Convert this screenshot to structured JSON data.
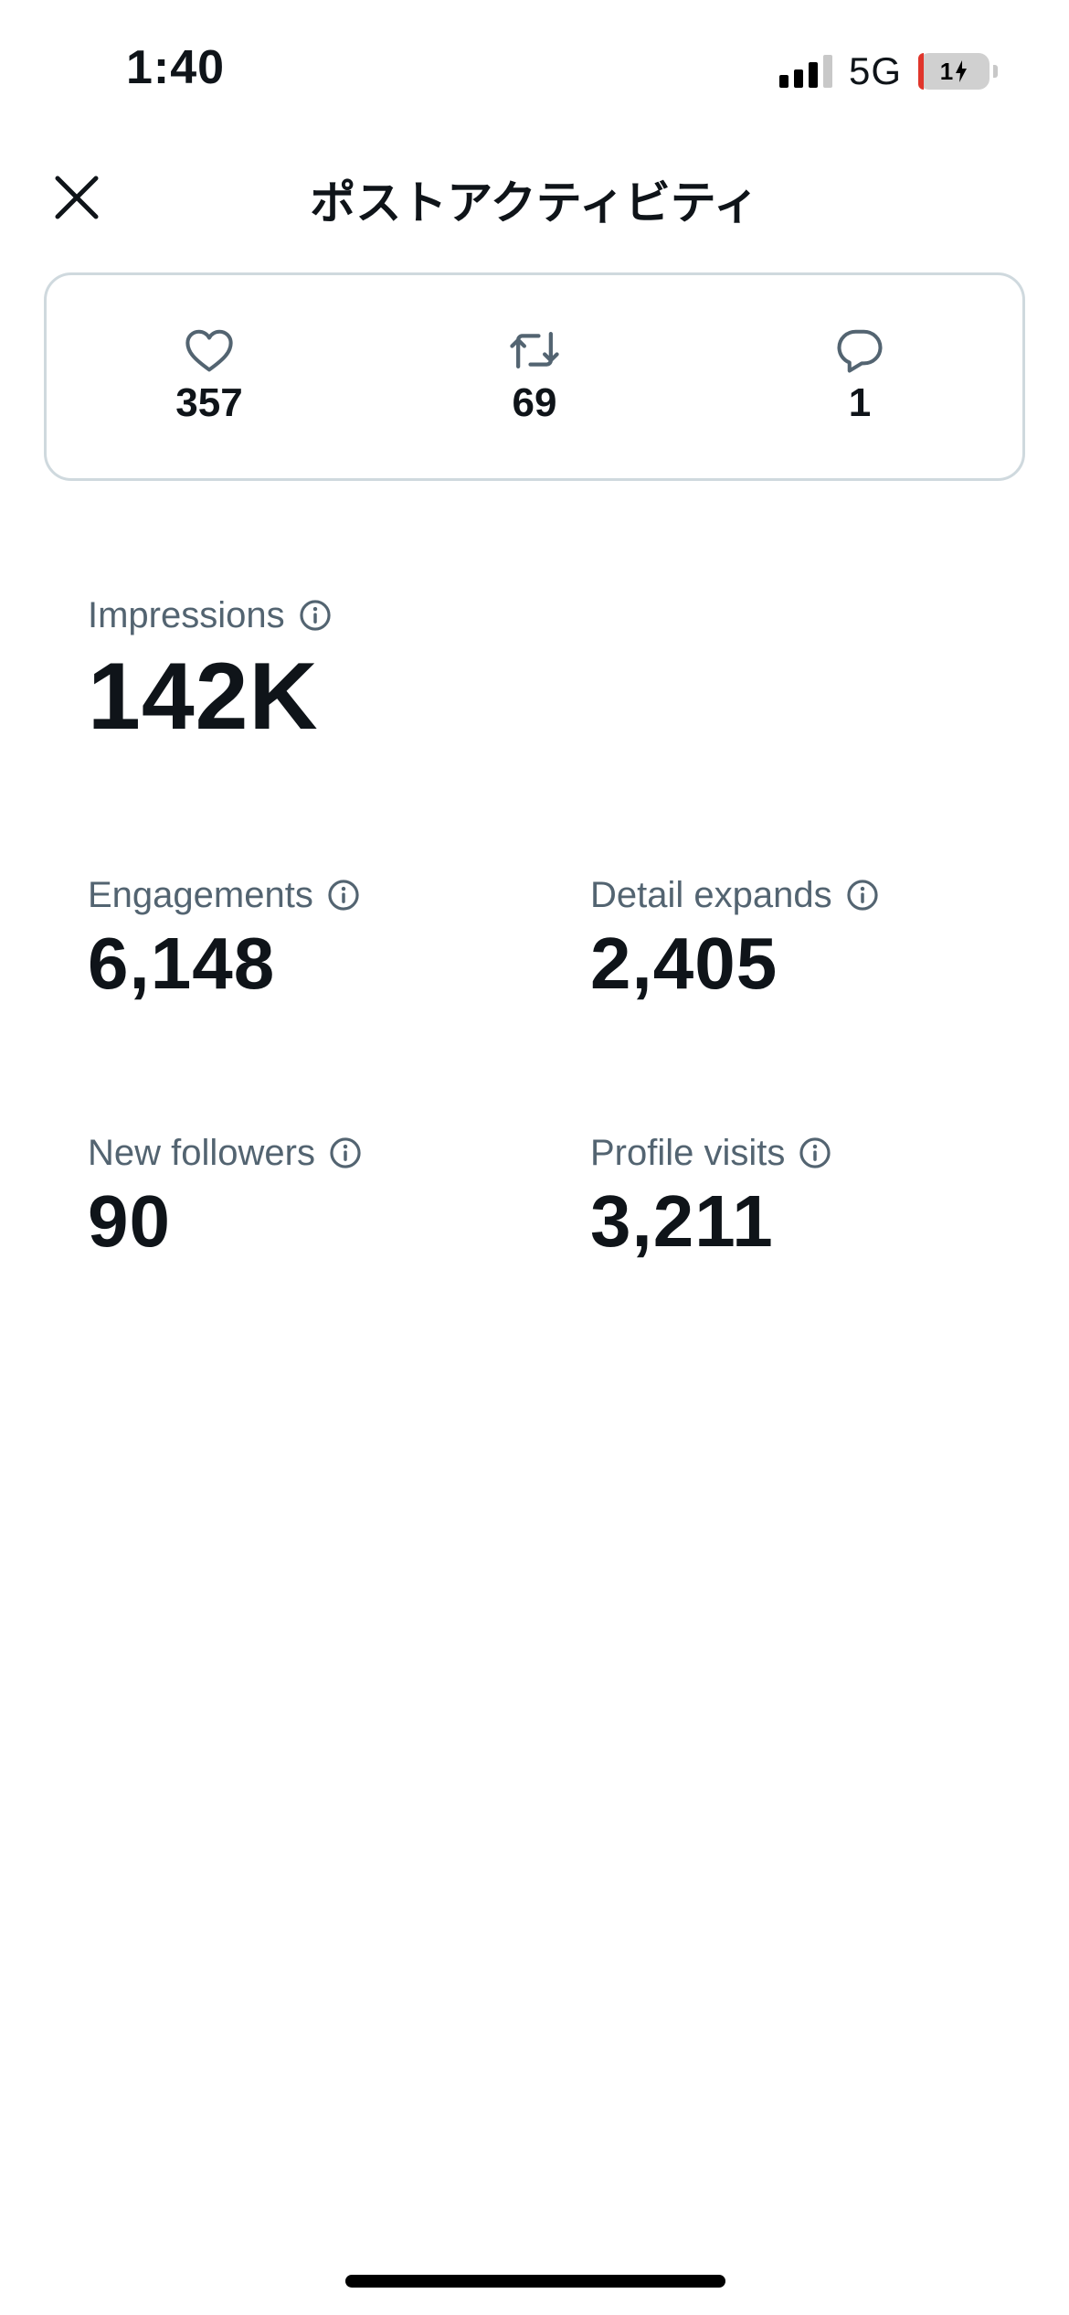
{
  "status_bar": {
    "time": "1:40",
    "network": "5G",
    "battery_percent": "1",
    "signal_bars_active": 3,
    "signal_bars_total": 4,
    "charging": true
  },
  "header": {
    "title": "ポストアクティビティ",
    "close_icon": "close-icon"
  },
  "engagement": {
    "likes": {
      "icon": "heart-icon",
      "count": "357"
    },
    "reposts": {
      "icon": "repost-icon",
      "count": "69"
    },
    "replies": {
      "icon": "reply-icon",
      "count": "1"
    }
  },
  "metrics": {
    "impressions": {
      "label": "Impressions",
      "value": "142K"
    },
    "engagements": {
      "label": "Engagements",
      "value": "6,148"
    },
    "detail_expands": {
      "label": "Detail expands",
      "value": "2,405"
    },
    "new_followers": {
      "label": "New followers",
      "value": "90"
    },
    "profile_visits": {
      "label": "Profile visits",
      "value": "3,211"
    }
  },
  "colors": {
    "text_primary": "#0f1419",
    "text_secondary": "#536471",
    "border": "#cfd9de",
    "battery_low": "#e0352b"
  }
}
